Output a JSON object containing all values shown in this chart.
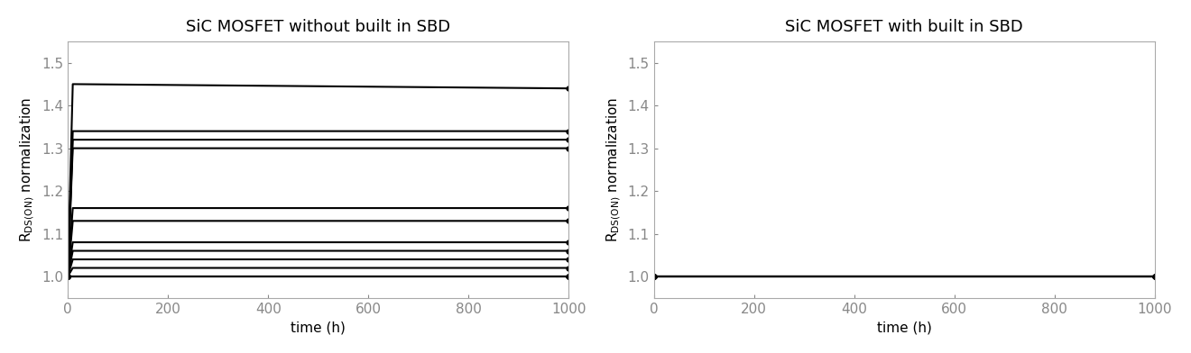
{
  "left_title": "SiC MOSFET without built in SBD",
  "right_title": "SiC MOSFET with built in SBD",
  "xlabel": "time (h)",
  "xlim": [
    0,
    1000
  ],
  "ylim": [
    0.95,
    1.55
  ],
  "yticks": [
    1.0,
    1.1,
    1.2,
    1.3,
    1.4,
    1.5
  ],
  "xticks": [
    0,
    200,
    400,
    600,
    800,
    1000
  ],
  "left_lines": [
    {
      "x0": 0,
      "y0": 1.0,
      "x1": 10,
      "y1": 1.0,
      "xf": 1000,
      "yf": 1.0
    },
    {
      "x0": 0,
      "y0": 1.0,
      "x1": 10,
      "y1": 1.0,
      "xf": 1000,
      "yf": 1.0
    },
    {
      "x0": 0,
      "y0": 1.0,
      "x1": 10,
      "y1": 1.0,
      "xf": 1000,
      "yf": 1.0
    },
    {
      "x0": 0,
      "y0": 1.0,
      "x1": 10,
      "y1": 1.02,
      "xf": 1000,
      "yf": 1.02
    },
    {
      "x0": 0,
      "y0": 1.0,
      "x1": 10,
      "y1": 1.04,
      "xf": 1000,
      "yf": 1.04
    },
    {
      "x0": 0,
      "y0": 1.0,
      "x1": 10,
      "y1": 1.06,
      "xf": 1000,
      "yf": 1.06
    },
    {
      "x0": 0,
      "y0": 1.0,
      "x1": 10,
      "y1": 1.08,
      "xf": 1000,
      "yf": 1.08
    },
    {
      "x0": 0,
      "y0": 1.0,
      "x1": 10,
      "y1": 1.13,
      "xf": 1000,
      "yf": 1.13
    },
    {
      "x0": 0,
      "y0": 1.0,
      "x1": 10,
      "y1": 1.16,
      "xf": 1000,
      "yf": 1.16
    },
    {
      "x0": 0,
      "y0": 1.0,
      "x1": 10,
      "y1": 1.3,
      "xf": 1000,
      "yf": 1.3
    },
    {
      "x0": 0,
      "y0": 1.0,
      "x1": 10,
      "y1": 1.32,
      "xf": 1000,
      "yf": 1.32
    },
    {
      "x0": 0,
      "y0": 1.0,
      "x1": 10,
      "y1": 1.34,
      "xf": 1000,
      "yf": 1.34
    },
    {
      "x0": 0,
      "y0": 1.0,
      "x1": 10,
      "y1": 1.45,
      "xf": 1000,
      "yf": 1.44
    }
  ],
  "right_lines": [
    {
      "x0": 0,
      "y0": 1.0,
      "x1": 10,
      "y1": 1.0,
      "xf": 1000,
      "yf": 1.0
    },
    {
      "x0": 0,
      "y0": 1.0,
      "x1": 10,
      "y1": 1.0,
      "xf": 1000,
      "yf": 1.0
    },
    {
      "x0": 0,
      "y0": 1.0,
      "x1": 10,
      "y1": 1.0,
      "xf": 1000,
      "yf": 1.0
    },
    {
      "x0": 0,
      "y0": 1.0,
      "x1": 10,
      "y1": 1.0,
      "xf": 1000,
      "yf": 1.0
    },
    {
      "x0": 0,
      "y0": 1.0,
      "x1": 10,
      "y1": 1.0,
      "xf": 1000,
      "yf": 1.0
    }
  ],
  "line_color": "#000000",
  "bg_color": "#ffffff",
  "title_fontsize": 13,
  "label_fontsize": 11,
  "tick_fontsize": 11,
  "tick_color": "#888888",
  "spine_color": "#aaaaaa"
}
